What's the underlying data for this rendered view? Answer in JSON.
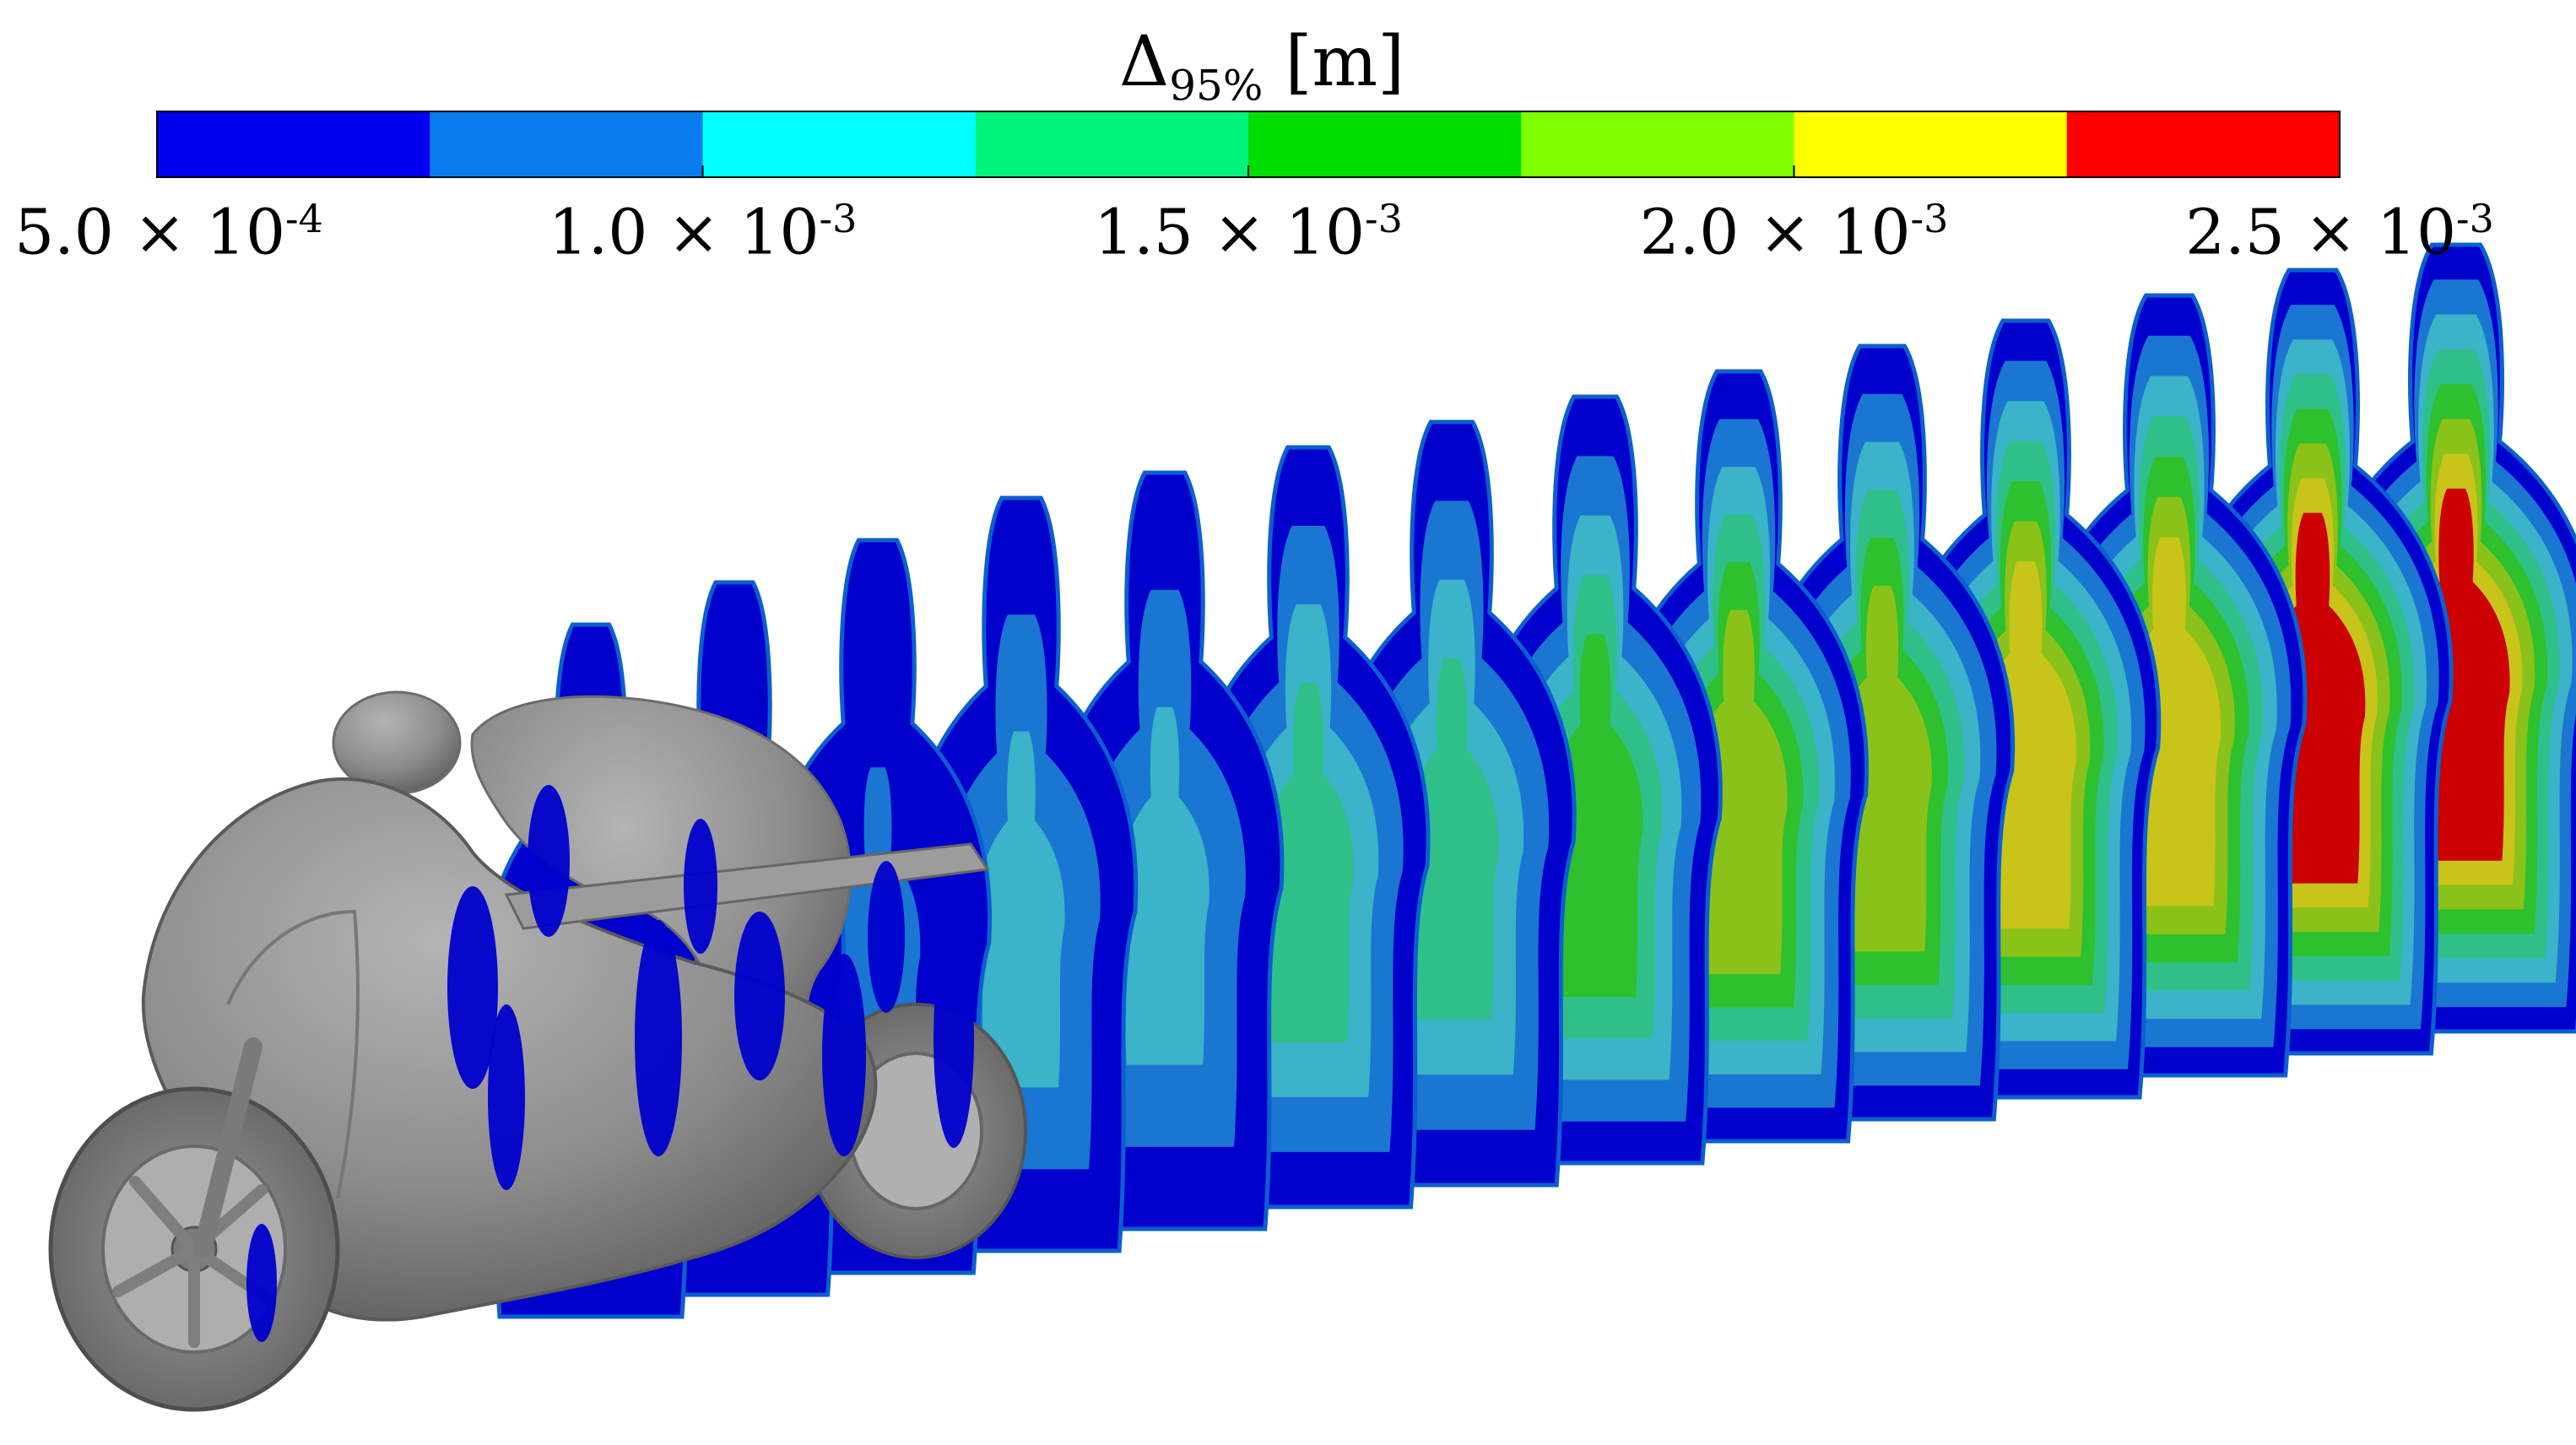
{
  "colorbar": {
    "title_symbol": "Δ",
    "title_subscript": "95%",
    "title_unit": "[m]",
    "colors": [
      "#0000ee",
      "#0a7cf0",
      "#00ffff",
      "#00f57a",
      "#00dd00",
      "#7fff00",
      "#ffff00",
      "#ff0000"
    ],
    "ticks": [
      {
        "mantissa": "5.0",
        "times": "×",
        "base": "10",
        "exponent": "-4"
      },
      {
        "mantissa": "1.0",
        "times": "×",
        "base": "10",
        "exponent": "-3"
      },
      {
        "mantissa": "1.5",
        "times": "×",
        "base": "10",
        "exponent": "-3"
      },
      {
        "mantissa": "2.0",
        "times": "×",
        "base": "10",
        "exponent": "-3"
      },
      {
        "mantissa": "2.5",
        "times": "×",
        "base": "10",
        "exponent": "-3"
      }
    ]
  },
  "slices": {
    "fill_levels": [
      "#0000cc",
      "#1a76d0",
      "#3bb3c8",
      "#2fc08a",
      "#2ec02e",
      "#8bc21a",
      "#c8c41a",
      "#cc0000"
    ]
  },
  "motorbike": {
    "color": "#8a8a8a"
  }
}
